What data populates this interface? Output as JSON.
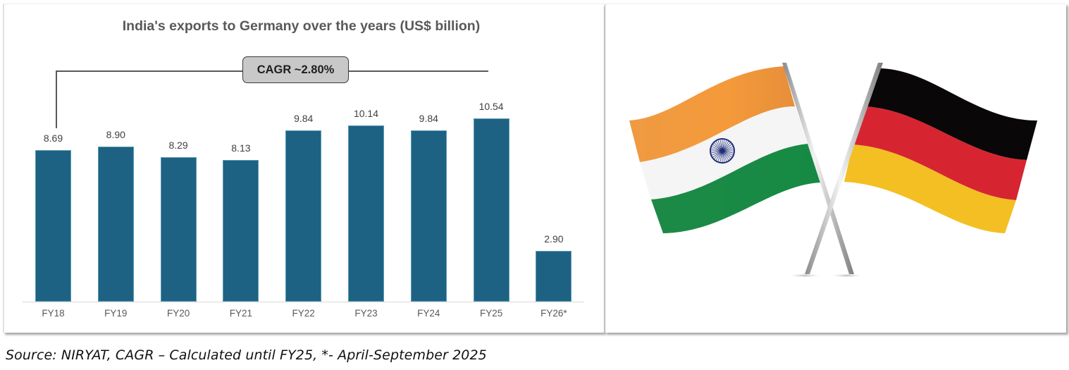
{
  "chart_data": {
    "type": "bar",
    "title": "India's exports to Germany over the years (US$ billion)",
    "categories": [
      "FY18",
      "FY19",
      "FY20",
      "FY21",
      "FY22",
      "FY23",
      "FY24",
      "FY25",
      "FY26*"
    ],
    "values": [
      8.69,
      8.9,
      8.29,
      8.13,
      9.84,
      10.14,
      9.84,
      10.54,
      2.9
    ],
    "value_labels": [
      "8.69",
      "8.90",
      "8.29",
      "8.13",
      "9.84",
      "10.14",
      "9.84",
      "10.54",
      "2.90"
    ],
    "xlabel": "",
    "ylabel": "",
    "ylim": [
      0,
      11
    ],
    "grid": false,
    "legend": null,
    "bar_color": "#1d6283",
    "annotations": [
      {
        "text": "CAGR ~2.80%",
        "span": [
          "FY18",
          "FY25"
        ]
      }
    ]
  },
  "chart": {
    "title": "India's exports to Germany over the years (US$ billion)",
    "cagr_label": "CAGR ~2.80%"
  },
  "image": {
    "description": "Crossed flags of India and Germany",
    "flags": [
      "India",
      "Germany"
    ]
  },
  "footer": {
    "source": "Source: NIRYAT, CAGR – Calculated until FY25, *- April-September 2025"
  }
}
